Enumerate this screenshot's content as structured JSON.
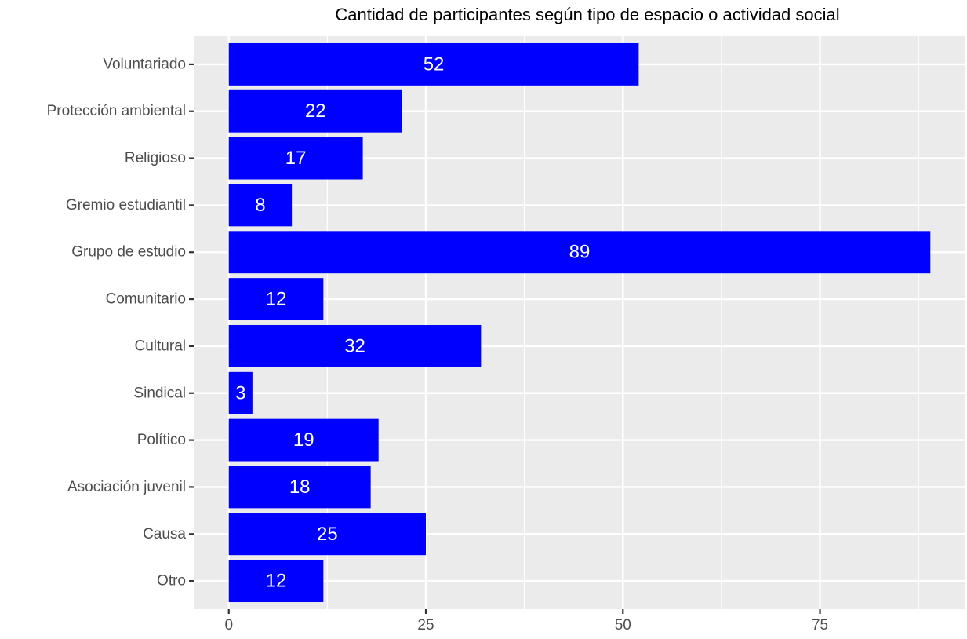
{
  "chart_data": {
    "type": "bar",
    "orientation": "horizontal",
    "title": "Cantidad de participantes según tipo de espacio o actividad social",
    "xlabel": "",
    "ylabel": "",
    "categories": [
      "Voluntariado",
      "Protección ambiental",
      "Religioso",
      "Gremio estudiantil",
      "Grupo de estudio",
      "Comunitario",
      "Cultural",
      "Sindical",
      "Político",
      "Asociación juvenil",
      "Causa",
      "Otro"
    ],
    "values": [
      52,
      22,
      17,
      8,
      89,
      12,
      32,
      3,
      19,
      18,
      25,
      12
    ],
    "xlim": [
      -4.45,
      93.45
    ],
    "xticks": [
      0,
      25,
      50,
      75
    ],
    "grid": true,
    "legend": "none",
    "colors": {
      "bar": "#0000ff",
      "panel": "#ebebeb",
      "grid": "#ffffff",
      "data_label": "#ffffff",
      "tick_label": "#4d4d4d",
      "tick": "#333333"
    }
  }
}
